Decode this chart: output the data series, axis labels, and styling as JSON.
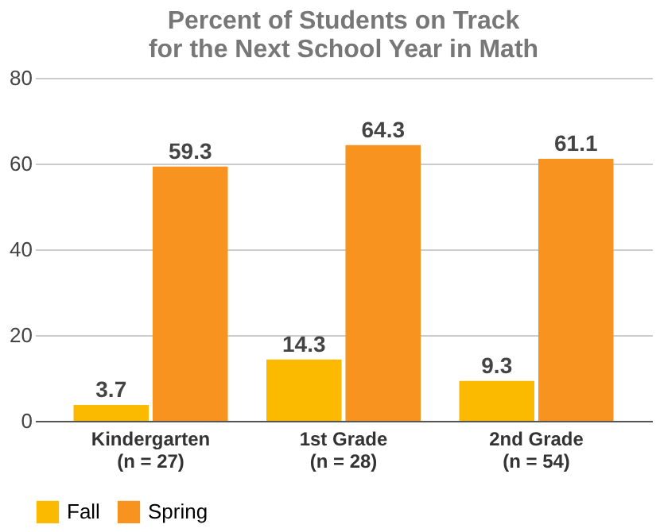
{
  "chart_data": {
    "type": "bar",
    "title": [
      "Percent of Students on Track",
      "for the Next School Year in Math"
    ],
    "categories": [
      "Kindergarten\n(n = 27)",
      "1st Grade\n(n = 28)",
      "2nd Grade\n(n = 54)"
    ],
    "series": [
      {
        "name": "Fall",
        "color": "#fbb900",
        "values": [
          3.7,
          14.3,
          9.3
        ]
      },
      {
        "name": "Spring",
        "color": "#f7931e",
        "values": [
          59.3,
          64.3,
          61.1
        ]
      }
    ],
    "ylim": [
      0,
      80
    ],
    "yticks": [
      0,
      20,
      40,
      60,
      80
    ],
    "grid": "y",
    "legend": "bottom",
    "data_labels": true
  }
}
